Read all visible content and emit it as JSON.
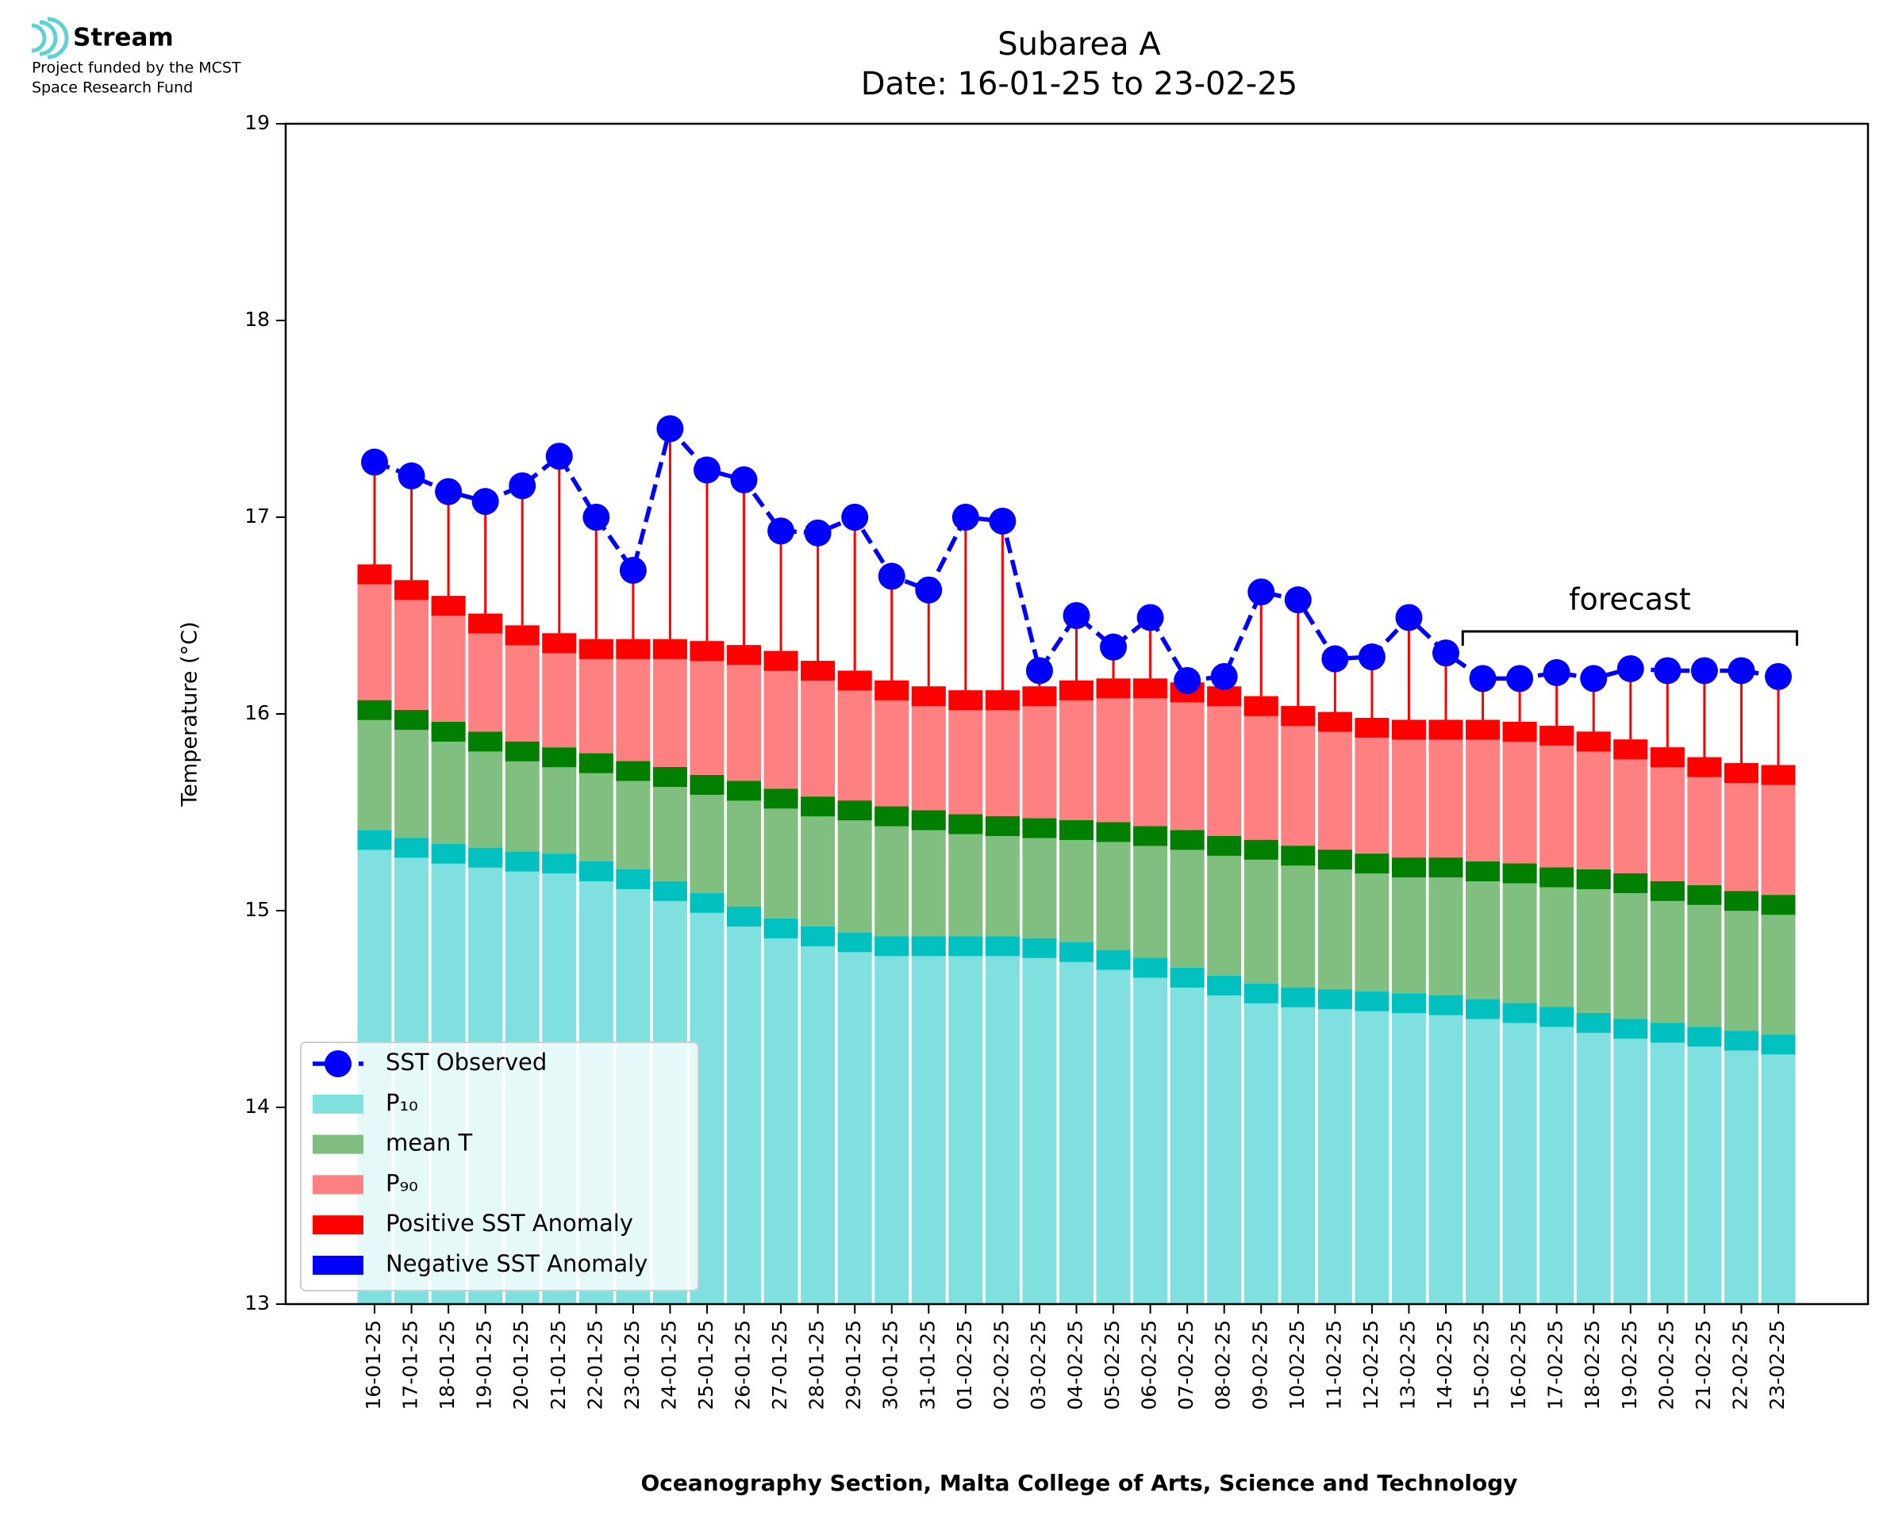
{
  "logo": {
    "name": "Stream",
    "lines": [
      "Project funded by the MCST",
      "Space Research Fund"
    ]
  },
  "chart_data": {
    "type": "bar",
    "title": "Subarea A",
    "subtitle": "Date: 16-01-25 to 23-02-25",
    "x_label": "Oceanography Section, Malta College of Arts, Science and Technology",
    "y_label": "Temperature (°C)",
    "categories": [
      "16-01-25",
      "17-01-25",
      "18-01-25",
      "19-01-25",
      "20-01-25",
      "21-01-25",
      "22-01-25",
      "23-01-25",
      "24-01-25",
      "25-01-25",
      "26-01-25",
      "27-01-25",
      "28-01-25",
      "29-01-25",
      "30-01-25",
      "31-01-25",
      "01-02-25",
      "02-02-25",
      "03-02-25",
      "04-02-25",
      "05-02-25",
      "06-02-25",
      "07-02-25",
      "08-02-25",
      "09-02-25",
      "10-02-25",
      "11-02-25",
      "12-02-25",
      "13-02-25",
      "14-02-25",
      "15-02-25",
      "16-02-25",
      "17-02-25",
      "18-02-25",
      "19-02-25",
      "20-02-25",
      "21-02-25",
      "22-02-25",
      "23-02-25"
    ],
    "series": [
      {
        "name": "SST Observed",
        "type": "line",
        "color": "#0000ff",
        "values": [
          17.28,
          17.21,
          17.13,
          17.08,
          17.16,
          17.31,
          17.0,
          16.73,
          17.45,
          17.24,
          17.19,
          16.93,
          16.92,
          17.0,
          16.7,
          16.63,
          17.0,
          16.98,
          16.22,
          16.5,
          16.34,
          16.49,
          16.17,
          16.19,
          16.62,
          16.58,
          16.28,
          16.29,
          16.49,
          16.31,
          16.18,
          16.18,
          16.21,
          16.18,
          16.23,
          16.22,
          16.22,
          16.22,
          16.19
        ]
      },
      {
        "name": "P₁₀",
        "type": "bar",
        "color": "#80dfdf",
        "cap_color": "#00c0c0",
        "values": [
          15.41,
          15.37,
          15.34,
          15.32,
          15.3,
          15.29,
          15.25,
          15.21,
          15.15,
          15.09,
          15.02,
          14.96,
          14.92,
          14.89,
          14.87,
          14.87,
          14.87,
          14.87,
          14.86,
          14.84,
          14.8,
          14.76,
          14.71,
          14.67,
          14.63,
          14.61,
          14.6,
          14.59,
          14.58,
          14.57,
          14.55,
          14.53,
          14.51,
          14.48,
          14.45,
          14.43,
          14.41,
          14.39,
          14.37
        ]
      },
      {
        "name": "mean T",
        "type": "bar",
        "color": "#80bf80",
        "cap_color": "#007f00",
        "values": [
          16.07,
          16.02,
          15.96,
          15.91,
          15.86,
          15.83,
          15.8,
          15.76,
          15.73,
          15.69,
          15.66,
          15.62,
          15.58,
          15.56,
          15.53,
          15.51,
          15.49,
          15.48,
          15.47,
          15.46,
          15.45,
          15.43,
          15.41,
          15.38,
          15.36,
          15.33,
          15.31,
          15.29,
          15.27,
          15.27,
          15.25,
          15.24,
          15.22,
          15.21,
          15.19,
          15.15,
          15.13,
          15.1,
          15.08
        ]
      },
      {
        "name": "P₉₀",
        "type": "bar",
        "color": "#ff8080",
        "cap_color": "#ff0000",
        "values": [
          16.76,
          16.68,
          16.6,
          16.51,
          16.45,
          16.41,
          16.38,
          16.38,
          16.38,
          16.37,
          16.35,
          16.32,
          16.27,
          16.22,
          16.17,
          16.14,
          16.12,
          16.12,
          16.14,
          16.17,
          16.18,
          16.18,
          16.16,
          16.14,
          16.09,
          16.04,
          16.01,
          15.98,
          15.97,
          15.97,
          15.97,
          15.96,
          15.94,
          15.91,
          15.87,
          15.83,
          15.78,
          15.75,
          15.74
        ]
      }
    ],
    "anomaly": {
      "positive": {
        "name": "Positive SST Anomaly",
        "color": "#ff0000"
      },
      "negative": {
        "name": "Negative SST Anomaly",
        "color": "#0000ff"
      }
    },
    "forecast": {
      "label": "forecast",
      "from": "15-02-25"
    },
    "ylim": [
      13,
      19
    ],
    "yticks": [
      13,
      14,
      15,
      16,
      17,
      18,
      19
    ],
    "legend": "lower left"
  }
}
